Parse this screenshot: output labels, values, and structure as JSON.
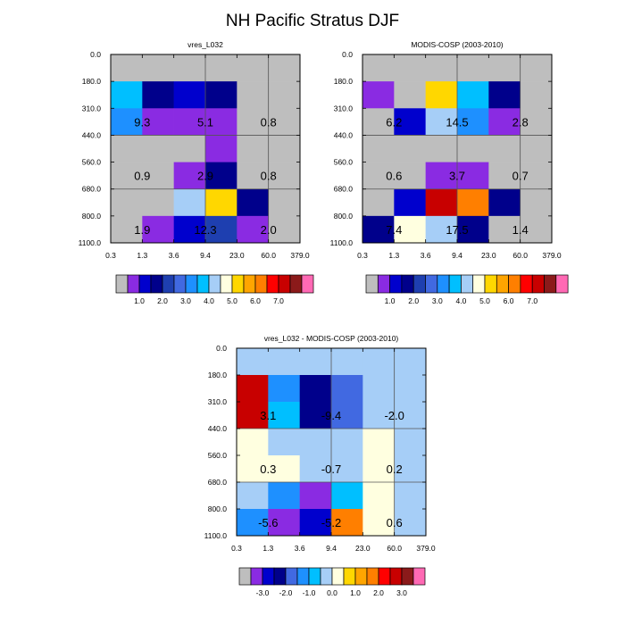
{
  "title": "NH Pacific Stratus DJF",
  "colormaps": {
    "abs": [
      "#bebebe",
      "#8a2be2",
      "#0000cd",
      "#00008b",
      "#1e3fb0",
      "#4169e1",
      "#1e90ff",
      "#00bfff",
      "#a6cef7",
      "#ffffe0",
      "#ffd700",
      "#ffa500",
      "#ff7f00",
      "#ff0000",
      "#c80000",
      "#8b1a1a",
      "#ff69b4"
    ],
    "diff": [
      "#bebebe",
      "#8a2be2",
      "#0000cd",
      "#00008b",
      "#4169e1",
      "#1e90ff",
      "#00bfff",
      "#a6cef7",
      "#ffffe0",
      "#ffd700",
      "#ffa500",
      "#ff7f00",
      "#ff0000",
      "#c80000",
      "#8b1a1a",
      "#ff69b4"
    ]
  },
  "chart_data": [
    {
      "type": "heatmap",
      "title": "vres_L032",
      "x_tick_labels": [
        "0.3",
        "1.3",
        "3.6",
        "9.4",
        "23.0",
        "60.0",
        "379.0"
      ],
      "y_tick_labels": [
        "0.0",
        "180.0",
        "310.0",
        "440.0",
        "560.0",
        "680.0",
        "800.0",
        "1100.0"
      ],
      "grid_lines": {
        "x": [
          3,
          5
        ],
        "y": [
          3,
          5
        ]
      },
      "cells": [
        [
          0,
          0,
          0,
          0,
          0,
          0
        ],
        [
          7,
          3,
          2,
          3,
          0,
          0
        ],
        [
          6,
          1,
          1,
          1,
          0,
          0
        ],
        [
          0,
          0,
          0,
          1,
          0,
          0
        ],
        [
          0,
          0,
          1,
          3,
          0,
          0
        ],
        [
          0,
          0,
          8,
          10,
          3,
          0
        ],
        [
          0,
          1,
          2,
          4,
          1,
          0
        ]
      ],
      "annotations": [
        {
          "value": "9.3",
          "row": 2,
          "col": 1
        },
        {
          "value": "5.1",
          "row": 2,
          "col": 3
        },
        {
          "value": "0.8",
          "row": 2,
          "col": 5
        },
        {
          "value": "0.9",
          "row": 4,
          "col": 1
        },
        {
          "value": "2.9",
          "row": 4,
          "col": 3
        },
        {
          "value": "0.8",
          "row": 4,
          "col": 5
        },
        {
          "value": "1.9",
          "row": 6,
          "col": 1
        },
        {
          "value": "12.3",
          "row": 6,
          "col": 3
        },
        {
          "value": "2.0",
          "row": 6,
          "col": 5
        }
      ],
      "colorbar": {
        "colormap": "abs",
        "labels": [
          "1.0",
          "2.0",
          "3.0",
          "4.0",
          "5.0",
          "6.0",
          "7.0"
        ]
      }
    },
    {
      "type": "heatmap",
      "title": "MODIS-COSP (2003-2010)",
      "x_tick_labels": [
        "0.3",
        "1.3",
        "3.6",
        "9.4",
        "23.0",
        "60.0",
        "379.0"
      ],
      "y_tick_labels": [
        "0.0",
        "180.0",
        "310.0",
        "440.0",
        "560.0",
        "680.0",
        "800.0",
        "1100.0"
      ],
      "grid_lines": {
        "x": [
          3,
          5
        ],
        "y": [
          3,
          5
        ]
      },
      "cells": [
        [
          0,
          0,
          0,
          0,
          0,
          0
        ],
        [
          1,
          0,
          10,
          7,
          3,
          0
        ],
        [
          0,
          2,
          8,
          6,
          1,
          0
        ],
        [
          0,
          0,
          0,
          0,
          0,
          0
        ],
        [
          0,
          0,
          1,
          1,
          0,
          0
        ],
        [
          0,
          2,
          14,
          12,
          3,
          0
        ],
        [
          3,
          9,
          8,
          3,
          0,
          0
        ]
      ],
      "annotations": [
        {
          "value": "6.2",
          "row": 2,
          "col": 1
        },
        {
          "value": "14.5",
          "row": 2,
          "col": 3
        },
        {
          "value": "2.8",
          "row": 2,
          "col": 5
        },
        {
          "value": "0.6",
          "row": 4,
          "col": 1
        },
        {
          "value": "3.7",
          "row": 4,
          "col": 3
        },
        {
          "value": "0.7",
          "row": 4,
          "col": 5
        },
        {
          "value": "7.4",
          "row": 6,
          "col": 1
        },
        {
          "value": "17.5",
          "row": 6,
          "col": 3
        },
        {
          "value": "1.4",
          "row": 6,
          "col": 5
        }
      ],
      "colorbar": {
        "colormap": "abs",
        "labels": [
          "1.0",
          "2.0",
          "3.0",
          "4.0",
          "5.0",
          "6.0",
          "7.0"
        ]
      }
    },
    {
      "type": "heatmap",
      "title": "vres_L032 - MODIS-COSP (2003-2010)",
      "x_tick_labels": [
        "0.3",
        "1.3",
        "3.6",
        "9.4",
        "23.0",
        "60.0",
        "379.0"
      ],
      "y_tick_labels": [
        "0.0",
        "180.0",
        "310.0",
        "440.0",
        "560.0",
        "680.0",
        "800.0",
        "1100.0"
      ],
      "grid_lines": {
        "x": [
          3,
          5
        ],
        "y": [
          3,
          5
        ]
      },
      "cells": [
        [
          7,
          7,
          7,
          7,
          7,
          7
        ],
        [
          13,
          5,
          3,
          4,
          7,
          7
        ],
        [
          13,
          6,
          3,
          4,
          7,
          7
        ],
        [
          8,
          7,
          7,
          7,
          8,
          7
        ],
        [
          8,
          8,
          7,
          7,
          8,
          7
        ],
        [
          7,
          5,
          1,
          6,
          8,
          7
        ],
        [
          5,
          1,
          2,
          11,
          8,
          7
        ]
      ],
      "annotations": [
        {
          "value": "3.1",
          "row": 2,
          "col": 1
        },
        {
          "value": "-9.4",
          "row": 2,
          "col": 3
        },
        {
          "value": "-2.0",
          "row": 2,
          "col": 5
        },
        {
          "value": "0.3",
          "row": 4,
          "col": 1
        },
        {
          "value": "-0.7",
          "row": 4,
          "col": 3
        },
        {
          "value": "0.2",
          "row": 4,
          "col": 5
        },
        {
          "value": "-5.6",
          "row": 6,
          "col": 1
        },
        {
          "value": "-5.2",
          "row": 6,
          "col": 3
        },
        {
          "value": "0.6",
          "row": 6,
          "col": 5
        }
      ],
      "colorbar": {
        "colormap": "diff",
        "labels": [
          "-3.0",
          "-2.0",
          "-1.0",
          "0.0",
          "1.0",
          "2.0",
          "3.0"
        ]
      }
    }
  ]
}
